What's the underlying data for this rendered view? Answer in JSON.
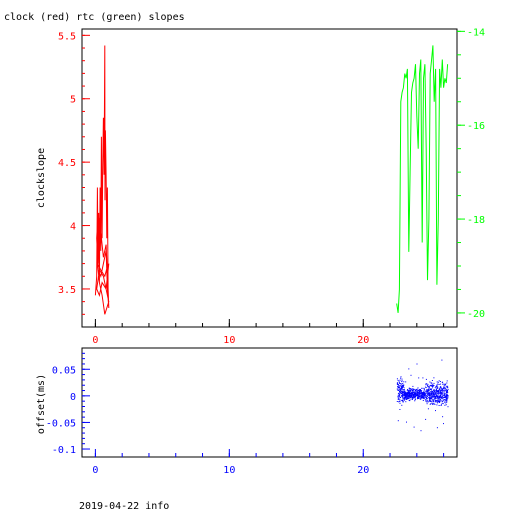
{
  "title": "clock (red) rtc (green) slopes",
  "footer": "2019-04-22 info",
  "colors": {
    "clock": "#ff0000",
    "rtc": "#00ff00",
    "offset": "#0000ff",
    "axis": "#000000"
  },
  "chart_data": [
    {
      "type": "line",
      "title": "clock (red) rtc (green) slopes",
      "xlabel": "",
      "ylabel": "clockslope",
      "xlim": [
        -1,
        27
      ],
      "ylim": [
        3.2,
        5.55
      ],
      "ylim_right": [
        -20.3,
        -13.95
      ],
      "x_ticks": [
        0,
        10,
        20
      ],
      "y_ticks": [
        3.5,
        4,
        4.5,
        5,
        5.5
      ],
      "y_tick_labels": [
        "3.5",
        "4",
        "4.5",
        "5",
        "5.5"
      ],
      "y_ticks_right": [
        -14,
        -16,
        -18,
        -20
      ],
      "y_tick_labels_right": [
        "-14",
        "-16",
        "-18",
        "-20"
      ],
      "series": [
        {
          "name": "clock",
          "axis": "left",
          "x": [
            0.0,
            0.1,
            0.15,
            0.2,
            0.25,
            0.3,
            0.35,
            0.4,
            0.45,
            0.5,
            0.55,
            0.6,
            0.65,
            0.7,
            0.72,
            0.75,
            0.8,
            0.85,
            0.9,
            0.95,
            1.0,
            0.9,
            0.8,
            0.6,
            0.4,
            0.2,
            0.1,
            0.2,
            0.4,
            0.6,
            0.8,
            0.9,
            1.0,
            0.8,
            0.5,
            0.3,
            0.1,
            0.3,
            0.6,
            0.9,
            1.0,
            0.7,
            0.5,
            0.3,
            0.15,
            0.4,
            0.7,
            0.95
          ],
          "y": [
            3.45,
            3.6,
            4.3,
            3.7,
            4.1,
            3.55,
            4.3,
            3.8,
            4.7,
            3.9,
            4.5,
            4.85,
            4.4,
            5.42,
            4.2,
            4.75,
            4.4,
            3.9,
            4.3,
            3.5,
            3.35,
            3.5,
            3.8,
            3.7,
            3.6,
            3.65,
            3.9,
            4.1,
            3.95,
            3.75,
            3.85,
            3.6,
            3.7,
            3.5,
            3.55,
            3.45,
            3.5,
            3.65,
            3.6,
            3.45,
            3.4,
            3.3,
            3.45,
            3.55,
            3.7,
            3.65,
            3.6,
            3.7
          ]
        },
        {
          "name": "rtc",
          "axis": "right",
          "x": [
            22.5,
            22.6,
            22.7,
            22.8,
            22.9,
            23.0,
            23.1,
            23.2,
            23.3,
            23.4,
            23.5,
            23.6,
            23.7,
            23.8,
            23.9,
            24.0,
            24.1,
            24.2,
            24.3,
            24.4,
            24.5,
            24.6,
            24.7,
            24.8,
            24.9,
            25.0,
            25.1,
            25.2,
            25.3,
            25.4,
            25.5,
            25.6,
            25.7,
            25.8,
            25.9,
            26.0,
            26.1,
            26.2,
            26.3
          ],
          "y": [
            -19.8,
            -20.0,
            -19.5,
            -15.5,
            -15.3,
            -15.2,
            -14.9,
            -15.0,
            -14.8,
            -18.7,
            -17.0,
            -15.3,
            -15.1,
            -15.0,
            -14.7,
            -15.8,
            -16.5,
            -14.9,
            -14.6,
            -18.5,
            -15.0,
            -14.7,
            -16.5,
            -19.3,
            -18.0,
            -14.9,
            -14.6,
            -14.3,
            -15.5,
            -14.8,
            -19.4,
            -18.0,
            -14.8,
            -15.2,
            -14.6,
            -15.2,
            -15.0,
            -15.1,
            -14.7
          ]
        }
      ]
    },
    {
      "type": "scatter",
      "xlabel": "",
      "ylabel": "offset(ms)",
      "xlim": [
        -1,
        27
      ],
      "ylim": [
        -0.115,
        0.09
      ],
      "x_ticks": [
        0,
        10,
        20
      ],
      "y_ticks": [
        0.05,
        0,
        -0.05,
        -0.1
      ],
      "y_tick_labels": [
        "0.05",
        "0",
        "-0.05",
        "-0.1"
      ],
      "series": [
        {
          "name": "offset",
          "x_range": [
            22.5,
            26.3
          ],
          "segments": [
            {
              "x": [
                22.5,
                23.0
              ],
              "center": 0.01,
              "spread": 0.03
            },
            {
              "x": [
                23.0,
                24.6
              ],
              "center": 0.003,
              "spread": 0.015
            },
            {
              "x": [
                24.6,
                26.3
              ],
              "center": 0.005,
              "spread": 0.03
            }
          ]
        }
      ]
    }
  ]
}
